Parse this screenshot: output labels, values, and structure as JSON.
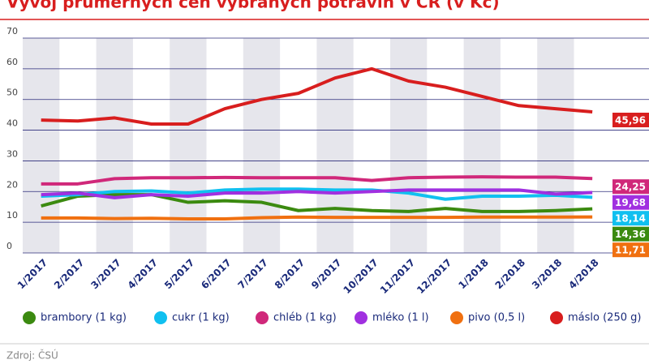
{
  "chart_data": {
    "type": "line",
    "title": "Vývoj průměrných cen vybraných potravin v ČR (v Kč)",
    "source": "Zdroj: ČSÚ",
    "categories": [
      "1/2017",
      "2/2017",
      "3/2017",
      "4/2017",
      "5/2017",
      "6/2017",
      "7/2017",
      "8/2017",
      "9/2017",
      "10/2017",
      "11/2017",
      "12/2017",
      "1/2018",
      "2/2018",
      "3/2018",
      "4/2018"
    ],
    "ylim": [
      0,
      70
    ],
    "yticks": [
      0,
      10,
      20,
      30,
      40,
      50,
      60,
      70
    ],
    "grid": true,
    "series": [
      {
        "name": "brambory (1 kg)",
        "color": "#3b8a10",
        "values": [
          15.3,
          18.5,
          19,
          19,
          16.5,
          17,
          16.5,
          13.8,
          14.5,
          13.8,
          13.5,
          14.5,
          13.5,
          13.5,
          13.8,
          14.36
        ],
        "value_labels": [
          null,
          null,
          null,
          null,
          null,
          null,
          null,
          null,
          null,
          null,
          null,
          null,
          null,
          null,
          null,
          "14,36"
        ]
      },
      {
        "name": "cukr (1 kg)",
        "color": "#10c0f0",
        "values": [
          18.5,
          19,
          20,
          20.2,
          19.5,
          20.5,
          20.8,
          20.8,
          20.5,
          20.5,
          19.5,
          17.5,
          18.5,
          18.5,
          18.8,
          18.14
        ],
        "value_labels": [
          null,
          null,
          null,
          null,
          null,
          null,
          null,
          null,
          null,
          null,
          null,
          null,
          null,
          null,
          null,
          "18,14"
        ]
      },
      {
        "name": "chléb (1 kg)",
        "color": "#d0287a",
        "values": [
          22.5,
          22.5,
          24.2,
          24.5,
          24.5,
          24.6,
          24.5,
          24.5,
          24.5,
          23.6,
          24.5,
          24.7,
          24.8,
          24.7,
          24.7,
          24.25
        ],
        "value_labels": [
          null,
          null,
          null,
          null,
          null,
          null,
          null,
          null,
          null,
          null,
          null,
          null,
          null,
          null,
          null,
          "24,25"
        ]
      },
      {
        "name": "mléko (1 l)",
        "color": "#a030e0",
        "values": [
          19,
          19.5,
          18,
          19,
          18.5,
          19.5,
          19.5,
          20,
          19.5,
          20,
          20.5,
          20.5,
          20.5,
          20.5,
          19.2,
          19.68
        ],
        "value_labels": [
          null,
          null,
          null,
          null,
          null,
          null,
          null,
          null,
          null,
          null,
          null,
          null,
          null,
          null,
          null,
          "19,68"
        ]
      },
      {
        "name": "pivo (0,5 l)",
        "color": "#f07010",
        "values": [
          11.4,
          11.4,
          11.2,
          11.3,
          11.1,
          11.1,
          11.5,
          11.7,
          11.6,
          11.6,
          11.6,
          11.6,
          11.7,
          11.7,
          11.7,
          11.71
        ],
        "value_labels": [
          null,
          null,
          null,
          null,
          null,
          null,
          null,
          null,
          null,
          null,
          null,
          null,
          null,
          null,
          null,
          "11,71"
        ]
      },
      {
        "name": "máslo (250 g)",
        "color": "#d81e1e",
        "values": [
          43.3,
          43,
          44,
          42,
          42,
          47,
          50,
          52,
          57,
          60,
          56,
          54,
          51,
          48,
          47,
          45.96
        ],
        "value_labels": [
          null,
          null,
          null,
          null,
          null,
          null,
          null,
          null,
          null,
          null,
          null,
          null,
          null,
          null,
          null,
          "45,96"
        ]
      }
    ]
  }
}
